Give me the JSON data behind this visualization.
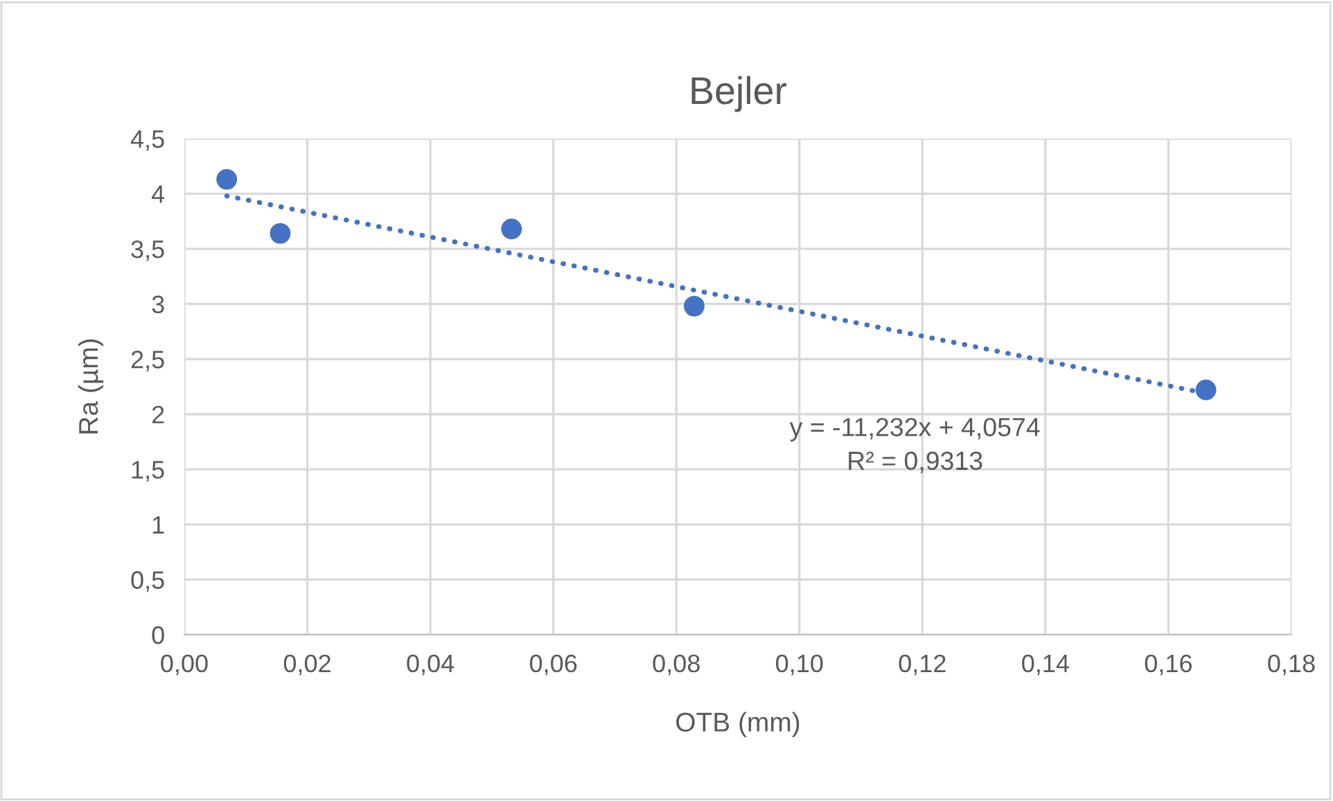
{
  "chart_data": {
    "type": "scatter",
    "title": "Bejler",
    "xlabel": "OTB (mm)",
    "ylabel": "Ra (µm)",
    "series": [
      {
        "color": "#4472c4",
        "marker": "circle",
        "x": [
          0.0069,
          0.0156,
          0.0532,
          0.0829,
          0.1661
        ],
        "values": [
          4.13,
          3.64,
          3.68,
          2.98,
          2.22
        ]
      },
      {
        "type": "line",
        "color": "#4472c4",
        "line_style": "dotted",
        "marker": "none",
        "x": [
          0.0069,
          0.1661
        ],
        "values": [
          3.98,
          2.19
        ]
      }
    ],
    "annotations": [
      "y = -11,232x + 4,0574",
      "R² = 0,9313"
    ],
    "xlim": [
      0,
      0.18
    ],
    "ylim": [
      0,
      4.5
    ],
    "xticks": [
      {
        "value": 0,
        "label": "0,00"
      },
      {
        "value": 0.02,
        "label": "0,02"
      },
      {
        "value": 0.04,
        "label": "0,04"
      },
      {
        "value": 0.06,
        "label": "0,06"
      },
      {
        "value": 0.08,
        "label": "0,08"
      },
      {
        "value": 0.1,
        "label": "0,10"
      },
      {
        "value": 0.12,
        "label": "0,12"
      },
      {
        "value": 0.14,
        "label": "0,14"
      },
      {
        "value": 0.16,
        "label": "0,16"
      },
      {
        "value": 0.18,
        "label": "0,18"
      }
    ],
    "yticks": [
      0,
      {
        "value": 0.5,
        "label": "0,5"
      },
      1,
      {
        "value": 1.5,
        "label": "1,5"
      },
      2,
      {
        "value": 2.5,
        "label": "2,5"
      },
      3,
      {
        "value": 3.5,
        "label": "3,5"
      },
      4,
      {
        "value": 4.5,
        "label": "4,5"
      }
    ],
    "grid": true,
    "legend": false
  }
}
